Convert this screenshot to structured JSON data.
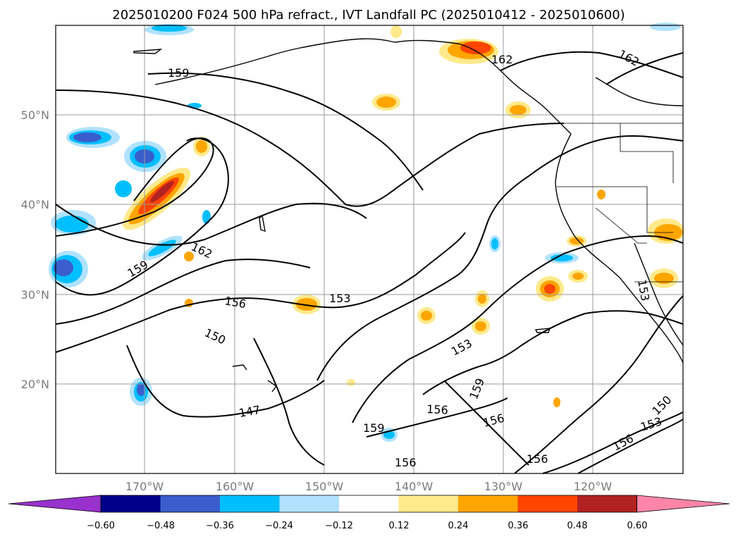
{
  "title": "2025010200 F024 500 hPa refract., IVT Landfall PC (2025010412 - 2025010600)",
  "lat_labels": [
    "50°N",
    "40°N",
    "30°N",
    "20°N"
  ],
  "lon_labels": [
    "170°W",
    "160°W",
    "150°W",
    "140°W",
    "130°W",
    "120°W"
  ],
  "contour_labels": [
    "159",
    "162",
    "162",
    "162",
    "159",
    "156",
    "153",
    "150",
    "153",
    "159",
    "156",
    "147",
    "159",
    "156",
    "156",
    "150",
    "153",
    "156",
    "156",
    "153"
  ],
  "colorbar": {
    "tick_labels": [
      "−0.60",
      "−0.48",
      "−0.36",
      "−0.24",
      "−0.12",
      "0.12",
      "0.24",
      "0.36",
      "0.48",
      "0.60"
    ],
    "colors": [
      "#9932cc",
      "#00008b",
      "#3a5fcd",
      "#00bfff",
      "#b0e2ff",
      "#ffffff",
      "#ffe98a",
      "#ffa500",
      "#ff4500",
      "#b22222",
      "#ff85a8"
    ]
  }
}
